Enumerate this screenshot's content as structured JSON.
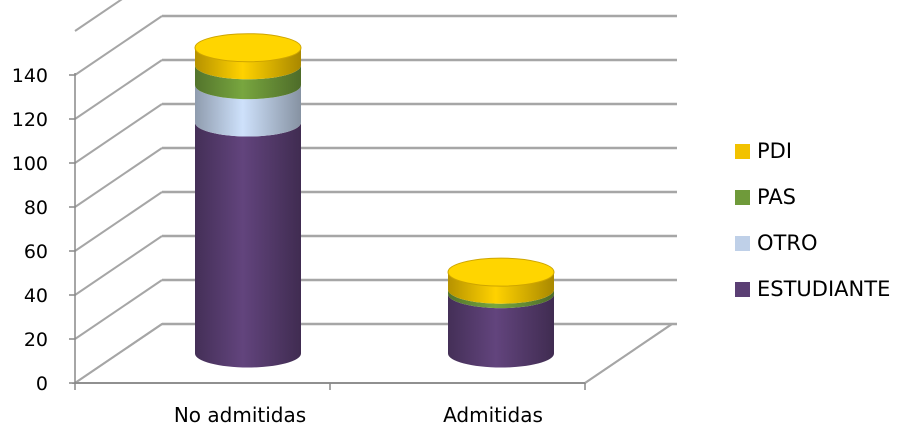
{
  "chart_data": {
    "type": "bar",
    "stacked": true,
    "style": "3d-cylinder",
    "categories": [
      "No admitidas",
      "Admitidas"
    ],
    "series": [
      {
        "name": "ESTUDIANTE",
        "values": [
          105,
          27
        ],
        "color": "#5b3f74"
      },
      {
        "name": "OTRO",
        "values": [
          17,
          0
        ],
        "color": "#bfd0e8"
      },
      {
        "name": "PAS",
        "values": [
          9,
          2
        ],
        "color": "#6f9a3a"
      },
      {
        "name": "PDI",
        "values": [
          8,
          8
        ],
        "color": "#f2c200"
      }
    ],
    "legend_order": [
      "PDI",
      "PAS",
      "OTRO",
      "ESTUDIANTE"
    ],
    "ylim": [
      0,
      160
    ],
    "yticks": [
      0,
      20,
      40,
      60,
      80,
      100,
      120,
      140
    ],
    "grid": true,
    "legend_position": "right",
    "xlabel": "",
    "ylabel": "",
    "title": ""
  }
}
